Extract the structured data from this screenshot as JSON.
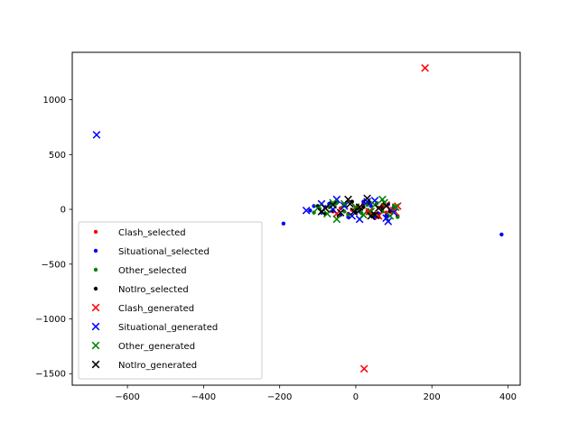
{
  "chart_data": {
    "type": "scatter",
    "xlim": [
      -745,
      432
    ],
    "ylim": [
      -1605,
      1433
    ],
    "x_ticks": [
      -600,
      -400,
      -200,
      0,
      200,
      400
    ],
    "y_ticks": [
      -1500,
      -1000,
      -500,
      0,
      500,
      1000
    ],
    "x_tick_labels": [
      "−600",
      "−400",
      "−200",
      "0",
      "200",
      "400"
    ],
    "y_tick_labels": [
      "−1500",
      "−1000",
      "−500",
      "0",
      "500",
      "1000"
    ],
    "grid": false,
    "legend_position": "lower-left",
    "series": [
      {
        "name": "Clash_selected",
        "marker": "dot",
        "color": "#ff0000",
        "points": [
          [
            -40,
            10
          ],
          [
            -20,
            -40
          ],
          [
            5,
            30
          ],
          [
            30,
            -20
          ],
          [
            60,
            15
          ],
          [
            80,
            -30
          ],
          [
            100,
            20
          ],
          [
            110,
            -60
          ],
          [
            -60,
            -20
          ],
          [
            20,
            50
          ],
          [
            45,
            -50
          ],
          [
            -10,
            -5
          ],
          [
            70,
            40
          ],
          [
            90,
            -10
          ],
          [
            -30,
            35
          ]
        ]
      },
      {
        "name": "Situational_selected",
        "marker": "dot",
        "color": "#0000ff",
        "points": [
          [
            -190,
            -130
          ],
          [
            383,
            -230
          ],
          [
            -120,
            -10
          ],
          [
            -80,
            20
          ],
          [
            -50,
            60
          ],
          [
            10,
            -20
          ],
          [
            40,
            30
          ],
          [
            80,
            -60
          ],
          [
            100,
            10
          ],
          [
            -90,
            -30
          ],
          [
            60,
            -40
          ],
          [
            20,
            70
          ],
          [
            -20,
            -70
          ],
          [
            -70,
            50
          ],
          [
            50,
            -80
          ],
          [
            -110,
            30
          ],
          [
            85,
            45
          ],
          [
            -40,
            -50
          ]
        ]
      },
      {
        "name": "Other_selected",
        "marker": "dot",
        "color": "#008000",
        "points": [
          [
            -110,
            -30
          ],
          [
            -70,
            20
          ],
          [
            -20,
            -50
          ],
          [
            30,
            40
          ],
          [
            70,
            -20
          ],
          [
            100,
            30
          ],
          [
            110,
            -70
          ],
          [
            -50,
            60
          ],
          [
            0,
            10
          ],
          [
            40,
            -60
          ],
          [
            -95,
            5
          ],
          [
            55,
            55
          ],
          [
            -30,
            -20
          ],
          [
            15,
            -35
          ]
        ]
      },
      {
        "name": "NotIro_selected",
        "marker": "dot",
        "color": "#000000",
        "points": [
          [
            -100,
            30
          ],
          [
            -60,
            -10
          ],
          [
            -30,
            40
          ],
          [
            0,
            -30
          ],
          [
            20,
            20
          ],
          [
            50,
            -40
          ],
          [
            70,
            10
          ],
          [
            90,
            -20
          ],
          [
            -80,
            -40
          ],
          [
            35,
            60
          ],
          [
            -10,
            70
          ],
          [
            60,
            -70
          ],
          [
            -45,
            -60
          ],
          [
            10,
            -10
          ]
        ]
      },
      {
        "name": "Clash_generated",
        "marker": "x",
        "color": "#ff0000",
        "points": [
          [
            182,
            1290
          ],
          [
            22,
            -1455
          ],
          [
            -50,
            -40
          ],
          [
            0,
            20
          ],
          [
            60,
            -60
          ],
          [
            100,
            -10
          ],
          [
            110,
            30
          ],
          [
            -80,
            10
          ],
          [
            35,
            -20
          ],
          [
            80,
            40
          ]
        ]
      },
      {
        "name": "Situational_generated",
        "marker": "x",
        "color": "#0000ff",
        "points": [
          [
            -681,
            680
          ],
          [
            -130,
            -10
          ],
          [
            -90,
            50
          ],
          [
            -50,
            90
          ],
          [
            -10,
            -60
          ],
          [
            30,
            70
          ],
          [
            50,
            80
          ],
          [
            80,
            -80
          ],
          [
            85,
            -110
          ],
          [
            -60,
            0
          ],
          [
            100,
            -30
          ],
          [
            10,
            -90
          ],
          [
            -30,
            30
          ]
        ]
      },
      {
        "name": "Other_generated",
        "marker": "x",
        "color": "#008000",
        "points": [
          [
            -100,
            10
          ],
          [
            -75,
            -40
          ],
          [
            -50,
            -90
          ],
          [
            -30,
            50
          ],
          [
            0,
            20
          ],
          [
            20,
            -50
          ],
          [
            50,
            40
          ],
          [
            70,
            90
          ],
          [
            90,
            -60
          ],
          [
            105,
            20
          ],
          [
            -60,
            60
          ],
          [
            40,
            -20
          ],
          [
            75,
            60
          ]
        ]
      },
      {
        "name": "NotIro_generated",
        "marker": "x",
        "color": "#000000",
        "points": [
          [
            -80,
            10
          ],
          [
            -60,
            40
          ],
          [
            -40,
            -30
          ],
          [
            -20,
            90
          ],
          [
            -5,
            -20
          ],
          [
            10,
            20
          ],
          [
            30,
            100
          ],
          [
            50,
            -50
          ],
          [
            60,
            10
          ],
          [
            80,
            30
          ],
          [
            -90,
            -20
          ],
          [
            40,
            -60
          ],
          [
            -15,
            50
          ]
        ]
      }
    ]
  }
}
